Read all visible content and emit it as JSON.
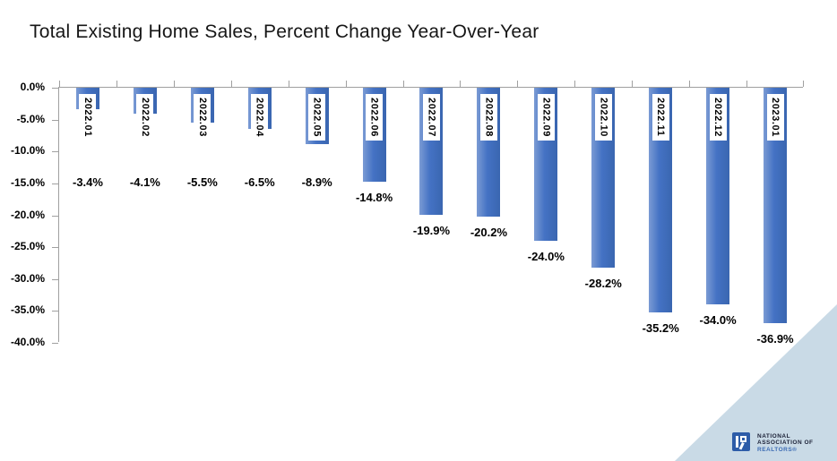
{
  "chart_data": {
    "type": "bar",
    "title": "Total Existing Home Sales, Percent Change Year-Over-Year",
    "xlabel": "",
    "ylabel": "",
    "categories": [
      "2022.01",
      "2022.02",
      "2022.03",
      "2022.04",
      "2022.05",
      "2022.06",
      "2022.07",
      "2022.08",
      "2022.09",
      "2022.10",
      "2022.11",
      "2022.12",
      "2023.01"
    ],
    "values": [
      -3.4,
      -4.1,
      -5.5,
      -6.5,
      -8.9,
      -14.8,
      -19.9,
      -20.2,
      -24.0,
      -28.2,
      -35.2,
      -34.0,
      -36.9
    ],
    "value_labels": [
      "-3.4%",
      "-4.1%",
      "-5.5%",
      "-6.5%",
      "-8.9%",
      "-14.8%",
      "-19.9%",
      "-20.2%",
      "-24.0%",
      "-28.2%",
      "-35.2%",
      "-34.0%",
      "-36.9%"
    ],
    "ylim": [
      0,
      -40
    ],
    "ytick_step": -5,
    "ytick_labels": [
      "0.0%",
      "-5.0%",
      "-10.0%",
      "-15.0%",
      "-20.0%",
      "-25.0%",
      "-30.0%",
      "-35.0%",
      "-40.0%"
    ],
    "grid": "off",
    "legend": "none",
    "category_labels_position": "inside-top-rotated-90cw",
    "value_labels_position": "outside-end"
  },
  "colors": {
    "background": "#ffffff",
    "bar_gradient_left": "#7b9bd4",
    "bar_mid": "#4472c4",
    "bar_gradient_right": "#3a66b0",
    "axis_line": "#a0a0a0",
    "label_text": "#000000",
    "title_text": "#161616",
    "corner_triangle": "#c9dae6",
    "logo_square": "#2d5ca8",
    "logo_dark_text": "#1b2036",
    "logo_blue_text": "#3d6cb4"
  },
  "branding": {
    "line1": "NATIONAL",
    "line2": "ASSOCIATION OF",
    "line3": "REALTORS®"
  }
}
